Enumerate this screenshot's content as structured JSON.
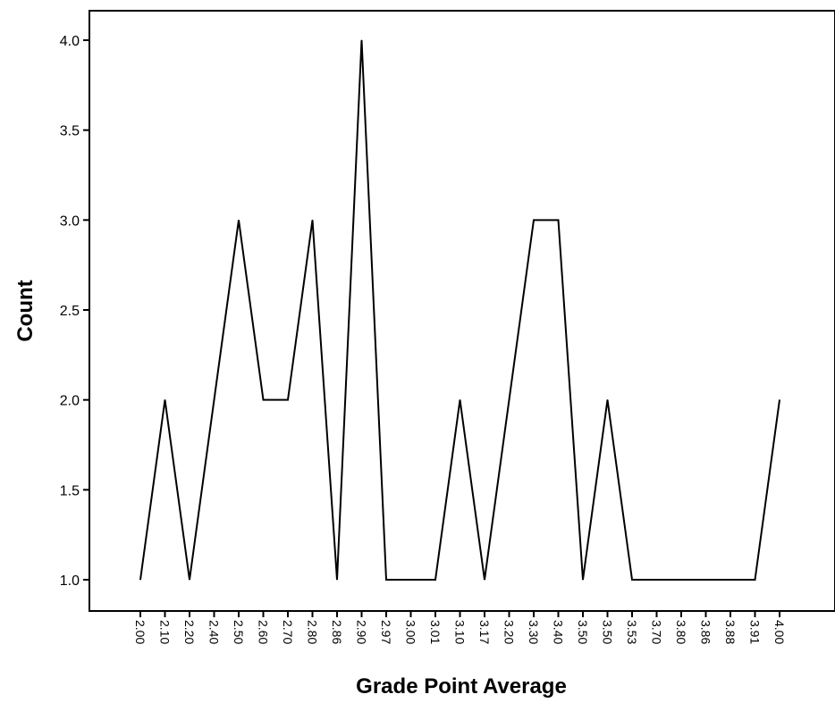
{
  "chart_data": {
    "type": "line",
    "title": "",
    "xlabel": "Grade Point Average",
    "ylabel": "Count",
    "categories": [
      "2.00",
      "2.10",
      "2.20",
      "2.40",
      "2.50",
      "2.60",
      "2.70",
      "2.80",
      "2.86",
      "2.90",
      "2.97",
      "3.00",
      "3.01",
      "3.10",
      "3.17",
      "3.20",
      "3.30",
      "3.40",
      "3.50",
      "3.50",
      "3.53",
      "3.70",
      "3.80",
      "3.86",
      "3.88",
      "3.91",
      "4.00"
    ],
    "series": [
      {
        "values": [
          1,
          2,
          1,
          2,
          3,
          2,
          2,
          3,
          1,
          4,
          1,
          1,
          1,
          2,
          1,
          2,
          3,
          3,
          1,
          2,
          1,
          1,
          1,
          1,
          1,
          1,
          2
        ]
      }
    ],
    "ylim": [
      0.75,
      4.25
    ],
    "yticks": [
      "1.0",
      "1.5",
      "2.0",
      "2.5",
      "3.0",
      "3.5",
      "4.0"
    ],
    "grid": false,
    "colors": {
      "line": "#000000",
      "background": "#ffffff"
    }
  }
}
